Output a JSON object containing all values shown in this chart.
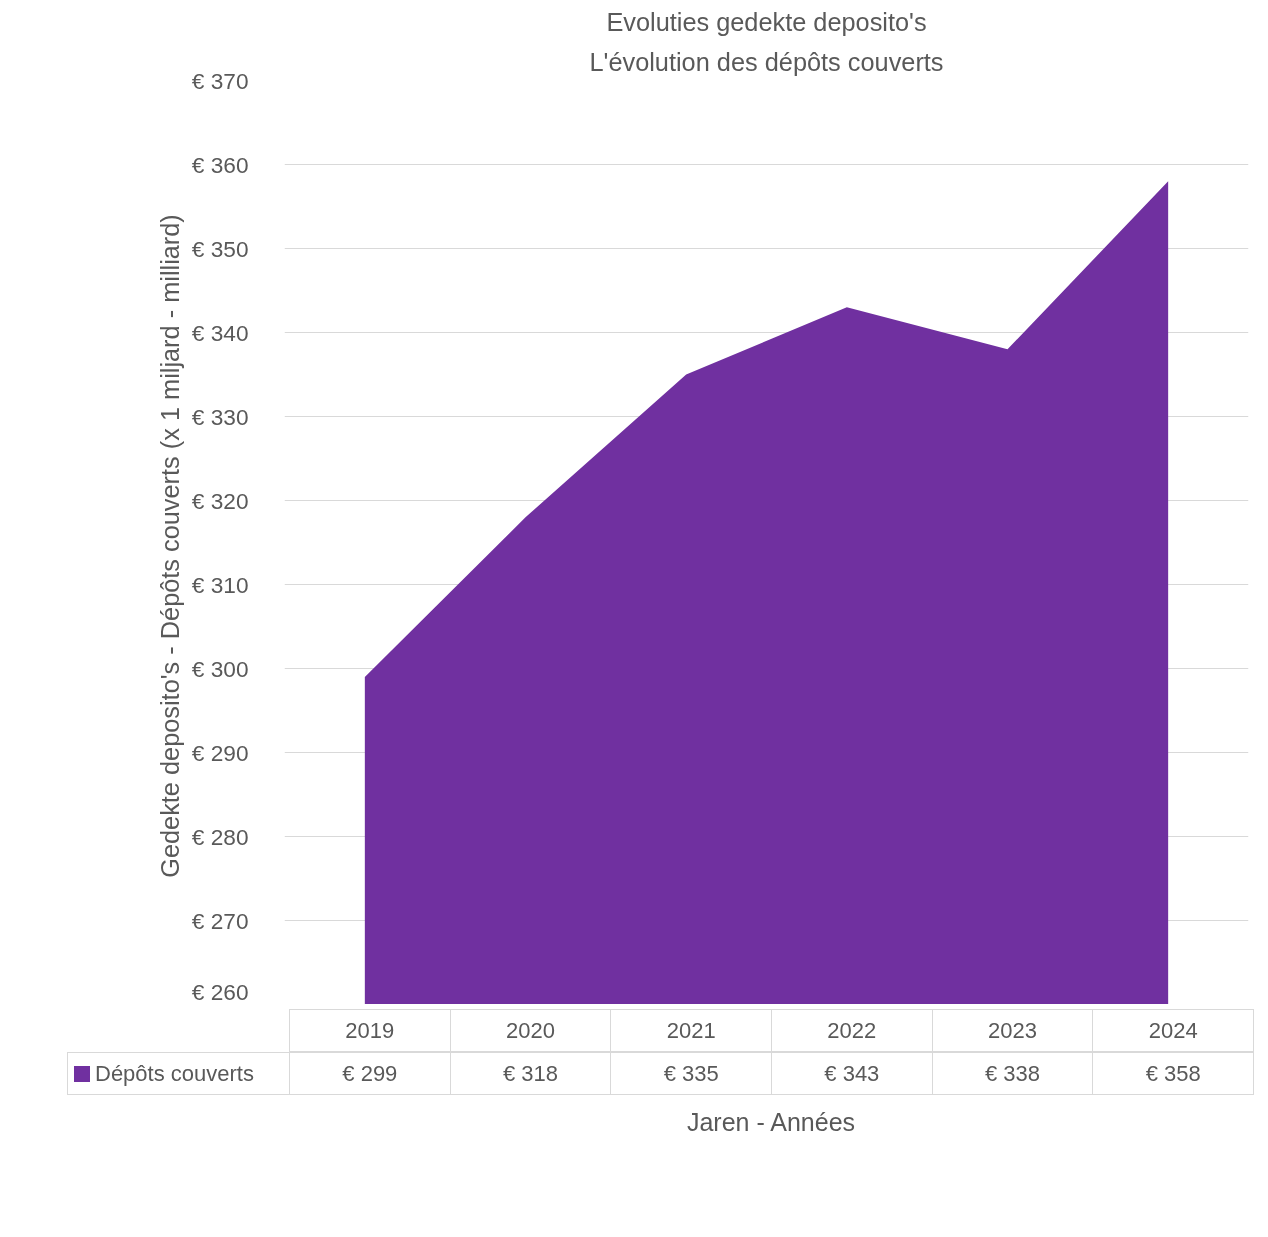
{
  "chart_data": {
    "type": "area",
    "title": "Evoluties gedekte deposito's",
    "subtitle": "L'évolution des dépôts couverts",
    "xlabel": "Jaren - Années",
    "ylabel": "Gedekte deposito's - Dépôts couverts  (x 1 miljard - milliard)",
    "categories": [
      "2019",
      "2020",
      "2021",
      "2022",
      "2023",
      "2024"
    ],
    "series": [
      {
        "name": "Dépôts couverts",
        "color": "#7030a0",
        "values": [
          299,
          318,
          335,
          343,
          338,
          358
        ],
        "value_labels": [
          "€ 299",
          "€ 318",
          "€ 335",
          "€ 343",
          "€ 338",
          "€ 358"
        ]
      }
    ],
    "ylim": [
      260,
      370
    ],
    "yticks": [
      {
        "value": 260,
        "label": "€ 260"
      },
      {
        "value": 270,
        "label": "€ 270"
      },
      {
        "value": 280,
        "label": "€ 280"
      },
      {
        "value": 290,
        "label": "€ 290"
      },
      {
        "value": 300,
        "label": "€ 300"
      },
      {
        "value": 310,
        "label": "€ 310"
      },
      {
        "value": 320,
        "label": "€ 320"
      },
      {
        "value": 330,
        "label": "€ 330"
      },
      {
        "value": 340,
        "label": "€ 340"
      },
      {
        "value": 350,
        "label": "€ 350"
      },
      {
        "value": 360,
        "label": "€ 360"
      },
      {
        "value": 370,
        "label": "€ 370"
      }
    ],
    "grid": "y",
    "legend": "bottom",
    "data_labels": true
  }
}
